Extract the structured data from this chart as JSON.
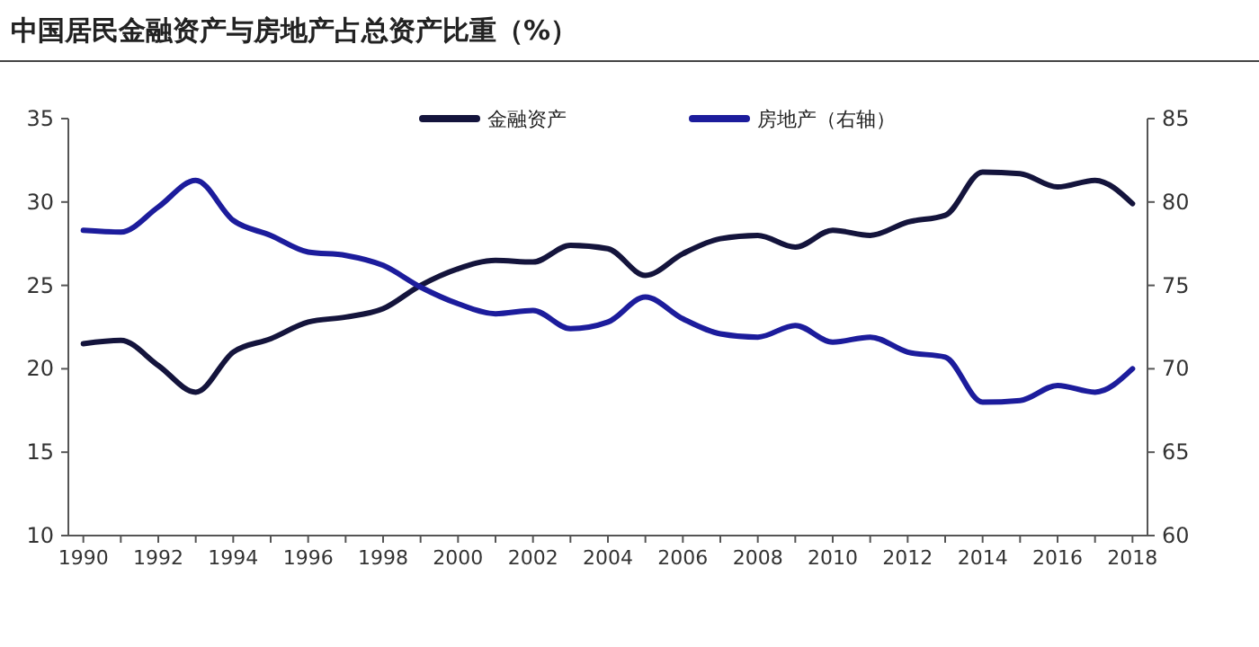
{
  "chart_data": {
    "type": "line",
    "title": "中国居民金融资产与房地产占总资产比重（%）",
    "x": [
      1990,
      1991,
      1992,
      1993,
      1994,
      1995,
      1996,
      1997,
      1998,
      1999,
      2000,
      2001,
      2002,
      2003,
      2004,
      2005,
      2006,
      2007,
      2008,
      2009,
      2010,
      2011,
      2012,
      2013,
      2014,
      2015,
      2016,
      2017,
      2018
    ],
    "series": [
      {
        "name": "金融资产",
        "color": "#14143c",
        "values": [
          21.5,
          21.7,
          20.2,
          18.6,
          21.0,
          21.8,
          22.8,
          23.1,
          23.6,
          25.0,
          26.0,
          26.5,
          26.4,
          27.4,
          27.2,
          25.6,
          26.9,
          27.8,
          28.0,
          27.3,
          28.3,
          28.0,
          28.8,
          29.2,
          31.8,
          31.7,
          30.9,
          31.3,
          29.9
        ]
      },
      {
        "name": "房地产（右轴）",
        "color": "#1c1c9c",
        "axis": "y2",
        "values": [
          78.3,
          78.2,
          79.7,
          81.3,
          78.9,
          78.0,
          77.0,
          76.8,
          76.2,
          74.9,
          73.9,
          73.3,
          73.5,
          72.4,
          72.8,
          74.3,
          73.0,
          72.1,
          71.9,
          72.6,
          71.6,
          71.9,
          71.0,
          70.7,
          68.0,
          68.1,
          69.0,
          68.6,
          70.0
        ]
      }
    ],
    "xlim": [
      1989.6,
      2018.4
    ],
    "xticks": [
      1990,
      {
        "value": 1991,
        "label": null
      },
      1992,
      {
        "value": 1993,
        "label": null
      },
      1994,
      {
        "value": 1995,
        "label": null
      },
      1996,
      {
        "value": 1997,
        "label": null
      },
      1998,
      {
        "value": 1999,
        "label": null
      },
      2000,
      {
        "value": 2001,
        "label": null
      },
      2002,
      {
        "value": 2003,
        "label": null
      },
      2004,
      {
        "value": 2005,
        "label": null
      },
      2006,
      {
        "value": 2007,
        "label": null
      },
      2008,
      {
        "value": 2009,
        "label": null
      },
      2010,
      {
        "value": 2011,
        "label": null
      },
      2012,
      {
        "value": 2013,
        "label": null
      },
      2014,
      {
        "value": 2015,
        "label": null
      },
      2016,
      {
        "value": 2017,
        "label": null
      },
      2018
    ],
    "ylim": [
      10,
      35
    ],
    "yticks": [
      10,
      15,
      20,
      25,
      30,
      35
    ],
    "y2lim": [
      60,
      85
    ],
    "y2ticks": [
      60,
      65,
      70,
      75,
      80,
      85
    ],
    "legend": "top",
    "grid": false,
    "marker": "none",
    "line_style": "solid"
  }
}
